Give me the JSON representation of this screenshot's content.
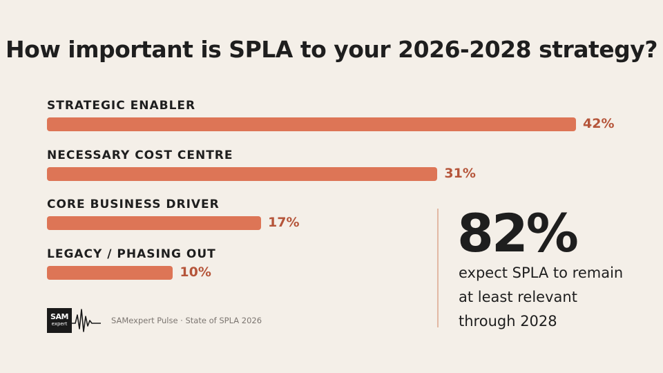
{
  "title": "How important is SPLA to your 2026-2028 strategy?",
  "chart_data": {
    "type": "bar",
    "orientation": "horizontal",
    "title": "How important is SPLA to your 2026-2028 strategy?",
    "categories": [
      "STRATEGIC ENABLER",
      "NECESSARY COST CENTRE",
      "CORE BUSINESS DRIVER",
      "LEGACY / PHASING OUT"
    ],
    "values": [
      42,
      31,
      17,
      10
    ],
    "value_labels": [
      "42%",
      "31%",
      "17%",
      "10%"
    ],
    "unit": "%",
    "bar_color": "#dd7556",
    "value_color": "#b5553a",
    "grid": false
  },
  "callout": {
    "stat": "82%",
    "lines": [
      "expect SPLA to remain",
      "at least relevant",
      "through 2028"
    ]
  },
  "logo": {
    "line1": "SAM",
    "line2": "expert"
  },
  "source": "SAMexpert Pulse · State of SPLA 2026",
  "colors": {
    "background": "#f4efe8",
    "accent": "#dd7556",
    "text": "#1e1e1e"
  }
}
